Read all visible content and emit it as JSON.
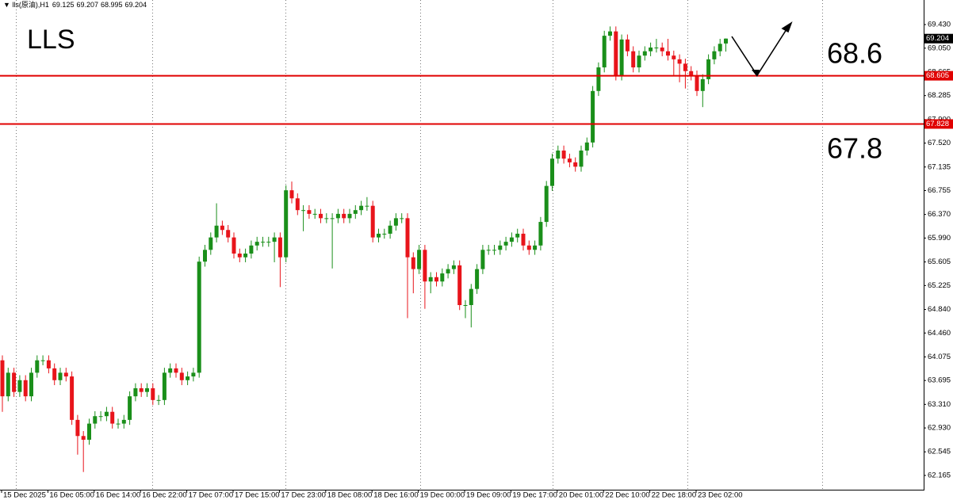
{
  "chart_data": {
    "type": "candlestick",
    "symbol": "lls(原油),H1",
    "title": "LLS",
    "annotations": [
      "68.6",
      "67.8"
    ],
    "up_color": "#1a8f1a",
    "down_color": "#e8141b",
    "hline_color": "#e00000",
    "hlines": [
      68.605,
      67.828
    ],
    "ylim": [
      61.935,
      69.826
    ],
    "yticks": [
      {
        "value": 69.43,
        "label": "69.430"
      },
      {
        "value": 69.05,
        "label": "69.050"
      },
      68.665,
      68.285,
      {
        "value": 67.9,
        "label": "67.900"
      },
      {
        "value": 67.52,
        "label": "67.520"
      },
      67.135,
      66.755,
      {
        "value": 66.37,
        "label": "66.370"
      },
      {
        "value": 65.99,
        "label": "65.990"
      },
      65.605,
      65.225,
      {
        "value": 64.84,
        "label": "64.840"
      },
      {
        "value": 64.46,
        "label": "64.460"
      },
      64.075,
      63.695,
      {
        "value": 63.31,
        "label": "63.310"
      },
      {
        "value": 62.93,
        "label": "62.930"
      },
      62.545,
      62.165
    ],
    "categories": [
      "15 Dec 2025",
      null,
      null,
      null,
      null,
      null,
      null,
      null,
      "16 Dec 05:00",
      null,
      null,
      null,
      null,
      null,
      null,
      null,
      "16 Dec 14:00",
      null,
      null,
      null,
      null,
      null,
      null,
      null,
      "16 Dec 22:00",
      null,
      null,
      null,
      null,
      null,
      null,
      null,
      "17 Dec 07:00",
      null,
      null,
      null,
      null,
      null,
      null,
      null,
      "17 Dec 15:00",
      null,
      null,
      null,
      null,
      null,
      null,
      null,
      "17 Dec 23:00",
      null,
      null,
      null,
      null,
      null,
      null,
      null,
      "18 Dec 08:00",
      null,
      null,
      null,
      null,
      null,
      null,
      null,
      "18 Dec 16:00",
      null,
      null,
      null,
      null,
      null,
      null,
      null,
      "19 Dec 00:00",
      null,
      null,
      null,
      null,
      null,
      null,
      null,
      "19 Dec 09:00",
      null,
      null,
      null,
      null,
      null,
      null,
      null,
      "19 Dec 17:00",
      null,
      null,
      null,
      null,
      null,
      null,
      null,
      "20 Dec 01:00",
      null,
      null,
      null,
      null,
      null,
      null,
      null,
      "22 Dec 10:00",
      null,
      null,
      null,
      null,
      null,
      null,
      null,
      "22 Dec 18:00",
      null,
      null,
      null,
      null,
      null,
      null,
      null,
      "23 Dec 02:00",
      null,
      null,
      null,
      null,
      null
    ],
    "open": [
      64.02,
      63.44,
      63.82,
      63.51,
      63.7,
      63.44,
      63.82,
      64.02,
      64.02,
      63.89,
      63.7,
      63.82,
      63.76,
      63.06,
      62.8,
      62.74,
      63.0,
      63.12,
      63.12,
      63.19,
      63.0,
      63.0,
      63.06,
      63.44,
      63.57,
      63.51,
      63.57,
      63.38,
      63.38,
      63.82,
      63.89,
      63.82,
      63.7,
      63.76,
      63.82,
      65.61,
      65.8,
      66.0,
      66.19,
      66.12,
      66.0,
      65.74,
      65.68,
      65.74,
      65.87,
      65.93,
      65.93,
      65.93,
      66.0,
      65.68,
      66.76,
      66.63,
      66.44,
      66.44,
      66.38,
      66.38,
      66.31,
      66.31,
      66.31,
      66.38,
      66.31,
      66.38,
      66.44,
      66.51,
      66.51,
      66.0,
      66.06,
      66.06,
      66.19,
      66.31,
      66.31,
      65.68,
      65.49,
      65.8,
      65.29,
      65.36,
      65.29,
      65.42,
      65.49,
      65.55,
      64.91,
      64.91,
      65.17,
      65.49,
      65.8,
      65.8,
      65.8,
      65.87,
      65.93,
      66.0,
      66.06,
      65.87,
      65.8,
      65.87,
      66.25,
      66.83,
      67.27,
      67.4,
      67.27,
      67.21,
      67.14,
      67.4,
      67.53,
      68.36,
      68.74,
      69.25,
      69.32,
      68.61,
      69.19,
      69.0,
      68.74,
      68.93,
      69.0,
      69.06,
      69.06,
      69.0,
      68.93,
      68.87,
      68.8,
      68.68,
      68.61,
      68.36,
      68.55,
      68.87,
      69.0,
      69.125
    ],
    "high": [
      64.1,
      63.9,
      63.9,
      63.78,
      63.78,
      63.9,
      64.1,
      64.1,
      64.1,
      63.97,
      63.9,
      63.9,
      63.84,
      63.14,
      62.88,
      63.08,
      63.2,
      63.2,
      63.27,
      63.27,
      63.08,
      63.14,
      63.52,
      63.65,
      63.65,
      63.65,
      63.65,
      63.46,
      63.9,
      63.97,
      63.97,
      63.9,
      63.84,
      63.9,
      65.69,
      65.88,
      66.08,
      66.55,
      66.27,
      66.2,
      66.08,
      65.82,
      65.82,
      65.95,
      66.01,
      66.01,
      66.01,
      66.08,
      66.08,
      66.84,
      66.9,
      66.71,
      66.52,
      66.52,
      66.46,
      66.46,
      66.39,
      66.39,
      66.46,
      66.46,
      66.46,
      66.52,
      66.59,
      66.65,
      66.59,
      66.14,
      66.14,
      66.27,
      66.39,
      66.39,
      66.39,
      65.76,
      65.88,
      65.88,
      65.44,
      65.44,
      65.5,
      65.57,
      65.63,
      65.63,
      64.99,
      65.25,
      65.57,
      65.88,
      65.88,
      65.88,
      65.95,
      66.01,
      66.08,
      66.14,
      66.14,
      65.95,
      65.95,
      66.33,
      66.91,
      67.35,
      67.48,
      67.48,
      67.35,
      67.29,
      67.48,
      67.61,
      68.44,
      68.82,
      69.33,
      69.4,
      69.4,
      69.27,
      69.27,
      69.08,
      69.01,
      69.08,
      69.14,
      69.2,
      69.14,
      69.2,
      69.01,
      68.95,
      68.88,
      68.76,
      68.69,
      68.63,
      68.95,
      69.08,
      69.2,
      69.207
    ],
    "low": [
      63.19,
      63.36,
      63.43,
      63.43,
      63.36,
      63.36,
      63.74,
      63.94,
      63.81,
      63.62,
      63.62,
      63.68,
      62.98,
      62.5,
      62.22,
      62.66,
      62.92,
      63.04,
      63.04,
      62.92,
      62.92,
      62.92,
      62.98,
      63.36,
      63.43,
      63.43,
      63.3,
      63.3,
      63.3,
      63.74,
      63.74,
      63.62,
      63.62,
      63.68,
      63.74,
      65.53,
      65.72,
      65.92,
      66.04,
      65.92,
      65.66,
      65.6,
      65.6,
      65.66,
      65.79,
      65.85,
      65.85,
      65.6,
      65.2,
      65.6,
      66.55,
      66.36,
      66.1,
      66.3,
      66.3,
      66.23,
      66.23,
      65.5,
      66.23,
      66.23,
      66.23,
      66.3,
      66.36,
      66.43,
      65.92,
      65.92,
      65.98,
      65.98,
      66.11,
      66.23,
      64.7,
      65.1,
      65.41,
      64.85,
      65.1,
      65.21,
      65.21,
      65.34,
      65.41,
      64.83,
      64.7,
      64.55,
      65.09,
      65.41,
      65.72,
      65.72,
      65.72,
      65.79,
      65.85,
      65.92,
      65.79,
      65.72,
      65.72,
      65.79,
      66.17,
      66.75,
      67.19,
      67.19,
      67.13,
      67.06,
      67.06,
      67.32,
      67.45,
      68.28,
      68.66,
      69.17,
      68.53,
      68.53,
      68.92,
      68.66,
      68.66,
      68.85,
      68.92,
      68.98,
      68.92,
      68.85,
      68.6,
      68.5,
      68.4,
      68.53,
      68.28,
      68.1,
      68.47,
      68.79,
      68.92,
      68.995
    ],
    "close": [
      63.44,
      63.82,
      63.51,
      63.7,
      63.44,
      63.82,
      64.02,
      64.02,
      63.89,
      63.7,
      63.82,
      63.76,
      63.06,
      62.8,
      62.74,
      63.0,
      63.12,
      63.12,
      63.19,
      63.0,
      63.0,
      63.06,
      63.44,
      63.57,
      63.51,
      63.57,
      63.38,
      63.38,
      63.82,
      63.89,
      63.82,
      63.7,
      63.76,
      63.82,
      65.61,
      65.8,
      66.0,
      66.19,
      66.12,
      66.0,
      65.74,
      65.68,
      65.74,
      65.87,
      65.93,
      65.93,
      65.93,
      66.0,
      65.68,
      66.76,
      66.63,
      66.44,
      66.44,
      66.38,
      66.38,
      66.31,
      66.31,
      66.31,
      66.38,
      66.31,
      66.38,
      66.44,
      66.51,
      66.51,
      66.0,
      66.06,
      66.06,
      66.19,
      66.31,
      66.31,
      65.68,
      65.49,
      65.8,
      65.29,
      65.36,
      65.29,
      65.42,
      65.49,
      65.55,
      64.91,
      64.91,
      65.17,
      65.49,
      65.8,
      65.8,
      65.8,
      65.87,
      65.93,
      66.0,
      66.06,
      65.87,
      65.8,
      65.87,
      66.25,
      66.83,
      67.27,
      67.4,
      67.27,
      67.21,
      67.14,
      67.4,
      67.53,
      68.36,
      68.74,
      69.25,
      69.32,
      68.61,
      69.19,
      69.0,
      68.74,
      68.93,
      69.0,
      69.06,
      69.06,
      69.0,
      68.93,
      68.87,
      68.8,
      68.68,
      68.61,
      68.36,
      68.55,
      68.87,
      69.0,
      69.12,
      69.204
    ]
  }
}
